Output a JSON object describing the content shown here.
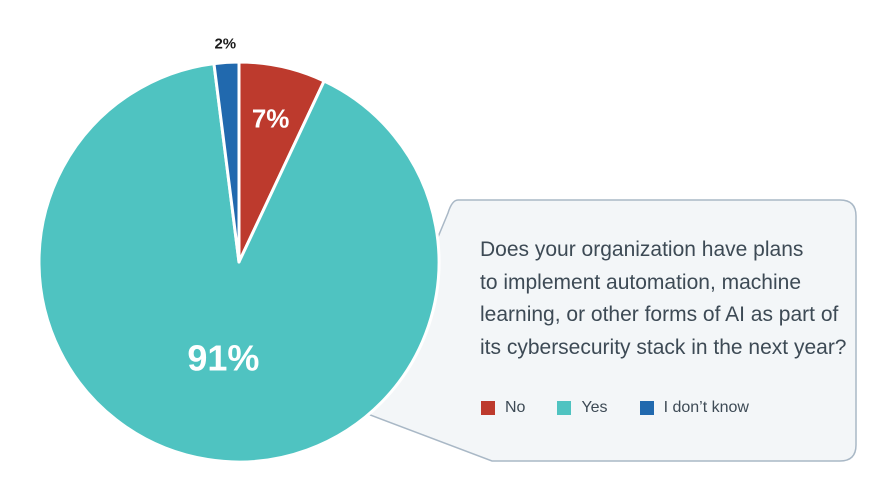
{
  "chart_data": {
    "type": "pie",
    "title": "Does your organization have plans to implement automation, machine learning, or other forms of AI as part of its cybersecurity stack in the next year?",
    "slices": [
      {
        "name": "No",
        "value": 7,
        "label": "7%",
        "color": "#bd3a2d"
      },
      {
        "name": "Yes",
        "value": 91,
        "label": "91%",
        "color": "#4fc3c1"
      },
      {
        "name": "I don't know",
        "value": 2,
        "label": "2%",
        "color": "#2169ae"
      }
    ],
    "legend": [
      {
        "name": "No",
        "color": "#bd3a2d"
      },
      {
        "name": "Yes",
        "color": "#4fc3c1"
      },
      {
        "name": "I don’t know",
        "color": "#2169ae"
      }
    ],
    "legend_position": "bottom-right"
  },
  "question_box": {
    "line1": "Does your organization have plans",
    "line2": "to implement automation, machine",
    "line3": "learning, or other forms of AI as part of",
    "line4": "its cybersecurity stack in the next year?"
  }
}
